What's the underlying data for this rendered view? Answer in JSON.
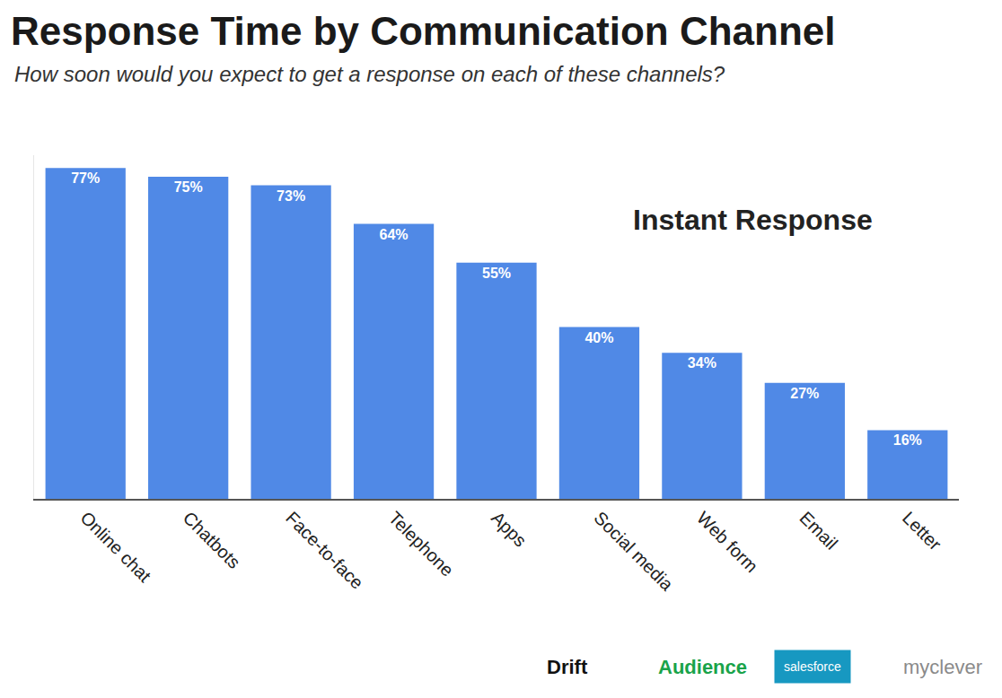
{
  "chart_data": {
    "type": "bar",
    "title": "Response Time by Communication Channel",
    "subtitle": "How soon would you expect to get a response on each of these channels?",
    "annotations": [
      "Instant Response"
    ],
    "logos": [
      "Drift",
      "Audience",
      "salesforce",
      "myclever"
    ],
    "categories": [
      "Online chat",
      "Chatbots",
      "Face-to-face",
      "Telephone",
      "Apps",
      "Social media",
      "Web form",
      "Email",
      "Letter"
    ],
    "values": [
      77,
      75,
      73,
      64,
      55,
      40,
      34,
      27,
      16
    ],
    "value_labels": [
      "77%",
      "75%",
      "73%",
      "64%",
      "55%",
      "40%",
      "34%",
      "27%",
      "16%"
    ],
    "data_labels": true,
    "color": "#5089e6",
    "ylim": [
      0,
      80
    ],
    "yticks": [],
    "tick_labels": "x",
    "grid": false
  }
}
